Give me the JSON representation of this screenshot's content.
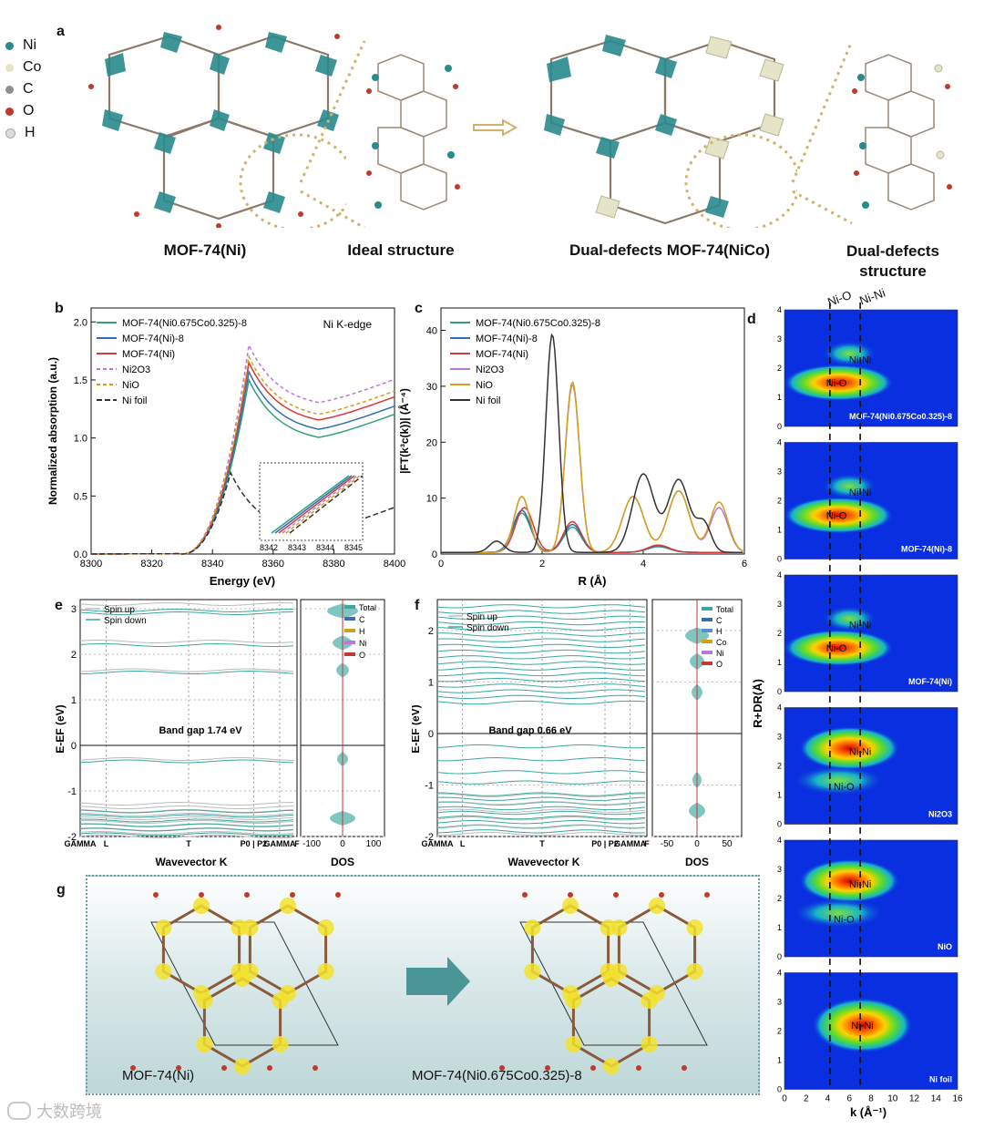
{
  "panel_a": {
    "letter": "a",
    "legend": [
      {
        "label": "Ni",
        "color": "#2a8a8c"
      },
      {
        "label": "Co",
        "color": "#e6e4c6"
      },
      {
        "label": "C",
        "color": "#8f8f8f"
      },
      {
        "label": "O",
        "color": "#c0392b"
      },
      {
        "label": "H",
        "color": "#dcdcdc"
      }
    ],
    "captions": [
      "MOF-74(Ni)",
      "Ideal structure",
      "Dual-defects MOF-74(NiCo)",
      "Dual-defects structure"
    ]
  },
  "panel_b": {
    "letter": "b",
    "title": "Ni K-edge",
    "xlabel": "Energy (eV)",
    "ylabel": "Normalized absorption (a.u.)",
    "xticks": [
      "8300",
      "8320",
      "8340",
      "8360",
      "8380",
      "8400"
    ],
    "yticks": [
      "0.0",
      "0.5",
      "1.0",
      "1.5",
      "2.0"
    ],
    "inset_ticks": [
      "8342",
      "8343",
      "8344",
      "8345"
    ],
    "legend": [
      {
        "label": "MOF-74(Ni0.675Co0.325)-8",
        "color": "#2fa37a"
      },
      {
        "label": "MOF-74(Ni)-8",
        "color": "#2f6fb0"
      },
      {
        "label": "MOF-74(Ni)",
        "color": "#d83a3a"
      },
      {
        "label": "Ni2O3",
        "color": "#b87ad6"
      },
      {
        "label": "NiO",
        "color": "#d4a017"
      },
      {
        "label": "Ni foil",
        "color": "#333333"
      }
    ]
  },
  "panel_c": {
    "letter": "c",
    "xlabel": "R (Å)",
    "ylabel": "|FT(k³c(k))| (Å⁻⁴)",
    "xticks": [
      "0",
      "2",
      "4",
      "6"
    ],
    "yticks": [
      "0",
      "10",
      "20",
      "30",
      "40"
    ],
    "legend": [
      {
        "label": "MOF-74(Ni0.675Co0.325)-8",
        "color": "#2fa37a"
      },
      {
        "label": "MOF-74(Ni)-8",
        "color": "#2f6fb0"
      },
      {
        "label": "MOF-74(Ni)",
        "color": "#d83a3a"
      },
      {
        "label": "Ni2O3",
        "color": "#b87ad6"
      },
      {
        "label": "NiO",
        "color": "#d4a017"
      },
      {
        "label": "Ni foil",
        "color": "#333333"
      }
    ]
  },
  "panel_d": {
    "letter": "d",
    "top_labels": [
      "Ni-O",
      "Ni-Ni"
    ],
    "ylabel": "R+DR(Å)",
    "xlabel": "k (Å⁻¹)",
    "xticks": [
      "0",
      "2",
      "4",
      "6",
      "8",
      "10",
      "12",
      "14",
      "16"
    ],
    "yticks": [
      "0",
      "1",
      "2",
      "3",
      "4"
    ],
    "maps": [
      {
        "name": "MOF-74(Ni0.675Co0.325)-8",
        "inner": [
          "Ni-Ni",
          "Ni-O"
        ]
      },
      {
        "name": "MOF-74(Ni)-8",
        "inner": [
          "Ni-Ni",
          "Ni-O"
        ]
      },
      {
        "name": "MOF-74(Ni)",
        "inner": [
          "Ni-Ni",
          "Ni-O"
        ]
      },
      {
        "name": "Ni2O3",
        "inner": [
          "Ni-Ni",
          "Ni-O"
        ]
      },
      {
        "name": "NiO",
        "inner": [
          "Ni-Ni",
          "Ni-O"
        ]
      },
      {
        "name": "Ni foil",
        "inner": [
          "Ni-Ni"
        ]
      }
    ]
  },
  "panel_e": {
    "letter": "e",
    "legend": [
      "Spin up",
      "Spin down"
    ],
    "band_gap": "Band gap 1.74 eV",
    "ylabel": "E-EF (eV)",
    "xlabel": "Wavevector K",
    "kpoints": [
      "GAMMA",
      "L",
      "T",
      "P0 | P2",
      "GAMMA",
      "F"
    ],
    "yticks": [
      "-2",
      "-1",
      "0",
      "1",
      "2",
      "3"
    ],
    "dos_legend": [
      "Total",
      "C",
      "H",
      "Ni",
      "O"
    ],
    "dos_xlabel": "DOS",
    "dos_ticks": [
      "-100",
      "0",
      "100"
    ]
  },
  "panel_f": {
    "letter": "f",
    "legend": [
      "Spin up",
      "Spin down"
    ],
    "band_gap": "Band gap 0.66 eV",
    "ylabel": "E-EF (eV)",
    "xlabel": "Wavevector K",
    "kpoints": [
      "GAMMA",
      "L",
      "T",
      "P0 | P2",
      "GAMMA",
      "F"
    ],
    "yticks": [
      "-2",
      "-1",
      "0",
      "1",
      "2"
    ],
    "dos_legend": [
      "Total",
      "C",
      "H",
      "Co",
      "Ni",
      "O"
    ],
    "dos_xlabel": "DOS",
    "dos_ticks": [
      "-50",
      "0",
      "50"
    ]
  },
  "panel_g": {
    "letter": "g",
    "labels": [
      "MOF-74(Ni)",
      "MOF-74(Ni0.675Co0.325)-8"
    ]
  },
  "watermark": "大数跨境"
}
